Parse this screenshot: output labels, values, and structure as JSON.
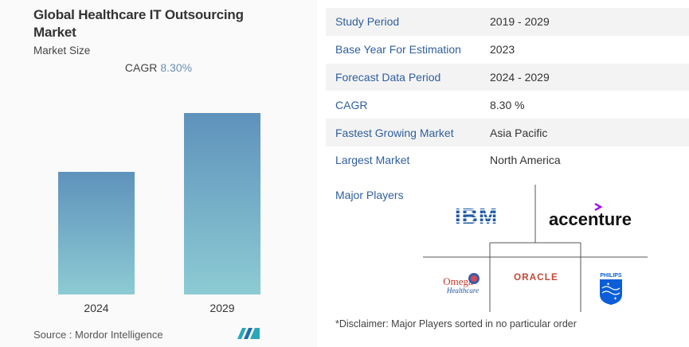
{
  "left": {
    "title": "Global Healthcare IT Outsourcing Market",
    "subtitle": "Market Size",
    "cagr_label": "CAGR",
    "cagr_value": "8.30%",
    "source": "Source : Mordor Intelligence"
  },
  "chart_data": {
    "type": "bar",
    "categories": [
      "2024",
      "2029"
    ],
    "values": [
      1.0,
      1.48
    ],
    "colors": {
      "top": "#5f92bc",
      "bottom": "#8ccbd3"
    },
    "grid": false,
    "title": "",
    "xlabel": "",
    "ylabel": ""
  },
  "info": {
    "rows": [
      {
        "key": "Study Period",
        "value": "2019 - 2029"
      },
      {
        "key": "Base Year For Estimation",
        "value": "2023"
      },
      {
        "key": "Forecast Data Period",
        "value": "2024 - 2029"
      },
      {
        "key": "CAGR",
        "value": "8.30 %"
      },
      {
        "key": "Fastest Growing Market",
        "value": "Asia Pacific"
      },
      {
        "key": "Largest Market",
        "value": "North America"
      }
    ],
    "players_label": "Major Players",
    "disclaimer": "*Disclaimer: Major Players sorted in no particular order"
  },
  "players": {
    "ibm": "IBM",
    "accenture": "accenture",
    "oracle": "ORACLE",
    "omega": "Omega",
    "omega_sub": "Healthcare",
    "philips": "PHILIPS"
  },
  "colors": {
    "key_text": "#2f5f9e",
    "ibm_blue": "#1f5aa6",
    "oracle_red": "#c74634",
    "accenture_purple": "#a100ff",
    "philips_blue": "#0b5ed7"
  }
}
